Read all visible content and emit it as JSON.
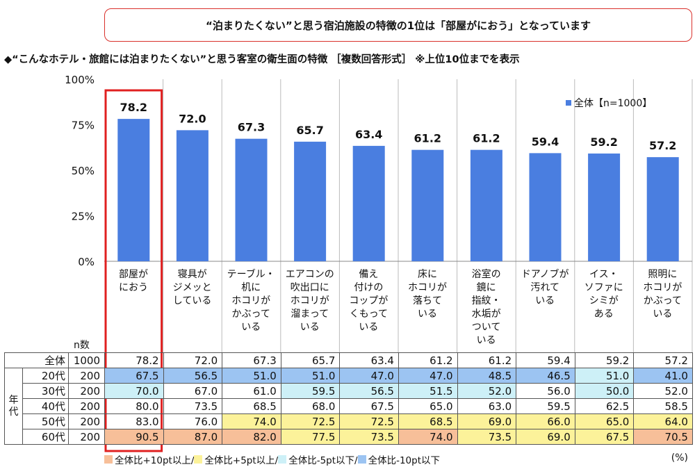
{
  "banner": "“泊まりたくない”と思う宿泊施設の特徴の1位は「部屋がにおう」となっています",
  "subtitle": "◆“こんなホテル・旅館には泊まりたくない”と思う客室の衛生面の特徴 ［複数回答形式］ ※上位10位までを表示",
  "chart_data": {
    "type": "bar",
    "categories": [
      "部屋が\nにおう",
      "寝具が\nジメッと\nしている",
      "テーブル・\n机に\nホコリが\nかぶって\nいる",
      "エアコンの\n吹出口に\nホコリが\n溜まって\nいる",
      "備え\n付けの\nコップが\nくもって\nいる",
      "床に\nホコリが\n落ちて\nいる",
      "浴室の\n鏡に\n指紋・\n水垢が\nついて\nいる",
      "ドアノブが\n汚れて\nいる",
      "イス・\nソファに\nシミが\nある",
      "照明に\nホコリが\nかぶって\nいる"
    ],
    "series": [
      {
        "name": "全体【n=1000】",
        "values": [
          78.2,
          72.0,
          67.3,
          65.7,
          63.4,
          61.2,
          61.2,
          59.4,
          59.2,
          57.2
        ]
      }
    ],
    "yticks": [
      "0%",
      "25%",
      "50%",
      "75%",
      "100%"
    ],
    "ylim": [
      0,
      100
    ],
    "color": "#4a7ee0",
    "highlight_color": "#e02020"
  },
  "table": {
    "n_header": "n数",
    "group_label": "年\n代",
    "rows": [
      {
        "label": "全体",
        "n": "1000",
        "values": [
          "78.2",
          "72.0",
          "67.3",
          "65.7",
          "63.4",
          "61.2",
          "61.2",
          "59.4",
          "59.2",
          "57.2"
        ],
        "shade": [
          "",
          "",
          "",
          "",
          "",
          "",
          "",
          "",
          "",
          ""
        ]
      },
      {
        "label": "20代",
        "n": "200",
        "values": [
          "67.5",
          "56.5",
          "51.0",
          "51.0",
          "47.0",
          "47.0",
          "48.5",
          "46.5",
          "51.0",
          "41.0"
        ],
        "shade": [
          "b",
          "b",
          "b",
          "b",
          "b",
          "b",
          "b",
          "b",
          "c",
          "b"
        ]
      },
      {
        "label": "30代",
        "n": "200",
        "values": [
          "70.0",
          "67.0",
          "61.0",
          "59.5",
          "56.5",
          "51.5",
          "52.0",
          "56.0",
          "50.0",
          "52.0"
        ],
        "shade": [
          "c",
          "",
          "",
          "c",
          "c",
          "c",
          "c",
          "",
          "c",
          ""
        ]
      },
      {
        "label": "40代",
        "n": "200",
        "values": [
          "80.0",
          "73.5",
          "68.5",
          "68.0",
          "67.5",
          "65.0",
          "63.0",
          "59.5",
          "62.5",
          "58.5"
        ],
        "shade": [
          "",
          "",
          "",
          "",
          "",
          "",
          "",
          "",
          "",
          ""
        ]
      },
      {
        "label": "50代",
        "n": "200",
        "values": [
          "83.0",
          "76.0",
          "74.0",
          "72.5",
          "72.5",
          "68.5",
          "69.0",
          "66.0",
          "65.0",
          "64.0"
        ],
        "shade": [
          "",
          "",
          "y",
          "y",
          "y",
          "y",
          "y",
          "y",
          "y",
          "y"
        ]
      },
      {
        "label": "60代",
        "n": "200",
        "values": [
          "90.5",
          "87.0",
          "82.0",
          "77.5",
          "73.5",
          "74.0",
          "73.5",
          "69.0",
          "67.5",
          "70.5"
        ],
        "shade": [
          "o",
          "o",
          "o",
          "y",
          "y",
          "o",
          "y",
          "y",
          "y",
          "o"
        ]
      }
    ]
  },
  "colors": {
    "o": "#f7bf99",
    "y": "#fcf29a",
    "c": "#cdf0f7",
    "b": "#9cc4f2"
  },
  "bottom_legend": [
    "全体比+10pt以上/",
    "全体比+5pt以上/",
    "全体比-5pt以下/",
    "全体比-10pt以下"
  ],
  "unit": "(%)"
}
